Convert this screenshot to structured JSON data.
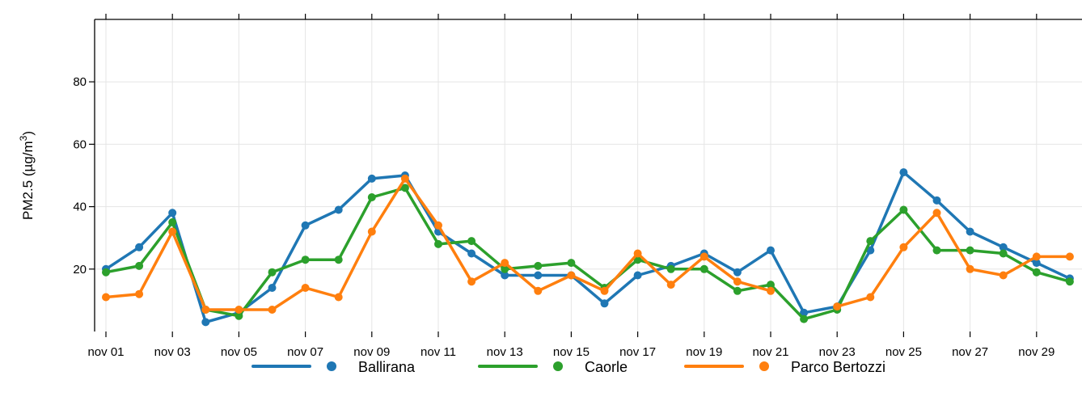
{
  "chart_data": {
    "type": "line",
    "x": [
      "nov 01",
      "nov 02",
      "nov 03",
      "nov 04",
      "nov 05",
      "nov 06",
      "nov 07",
      "nov 08",
      "nov 09",
      "nov 10",
      "nov 11",
      "nov 12",
      "nov 13",
      "nov 14",
      "nov 15",
      "nov 16",
      "nov 17",
      "nov 18",
      "nov 19",
      "nov 20",
      "nov 21",
      "nov 22",
      "nov 23",
      "nov 24",
      "nov 25",
      "nov 26",
      "nov 27",
      "nov 28",
      "nov 29",
      "nov 30"
    ],
    "x_tick_labels": [
      "nov 01",
      "nov 03",
      "nov 05",
      "nov 07",
      "nov 09",
      "nov 11",
      "nov 13",
      "nov 15",
      "nov 17",
      "nov 19",
      "nov 21",
      "nov 23",
      "nov 25",
      "nov 27",
      "nov 29"
    ],
    "y_ticks": [
      20,
      40,
      60,
      80
    ],
    "ylim": [
      0,
      100
    ],
    "ylabel": "PM2.5 (µg/m",
    "ylabel_sup": "3",
    "ylabel_close": ")",
    "grid": true,
    "legend_position": "bottom",
    "series": [
      {
        "name": "Ballirana",
        "color": "#1f77b4",
        "values": [
          20,
          27,
          38,
          3,
          6,
          14,
          34,
          39,
          49,
          50,
          32,
          25,
          18,
          18,
          18,
          9,
          18,
          21,
          25,
          19,
          26,
          6,
          8,
          26,
          51,
          42,
          32,
          27,
          22,
          17
        ]
      },
      {
        "name": "Caorle",
        "color": "#2ca02c",
        "values": [
          19,
          21,
          35,
          7,
          5,
          19,
          23,
          23,
          43,
          46,
          28,
          29,
          20,
          21,
          22,
          14,
          23,
          20,
          20,
          13,
          15,
          4,
          7,
          29,
          39,
          26,
          26,
          25,
          19,
          16
        ]
      },
      {
        "name": "Parco Bertozzi",
        "color": "#ff7f0e",
        "values": [
          11,
          12,
          32,
          7,
          7,
          7,
          14,
          11,
          32,
          49,
          34,
          16,
          22,
          13,
          18,
          13,
          25,
          15,
          24,
          16,
          13,
          null,
          8,
          11,
          27,
          38,
          20,
          18,
          24,
          24
        ]
      }
    ]
  }
}
